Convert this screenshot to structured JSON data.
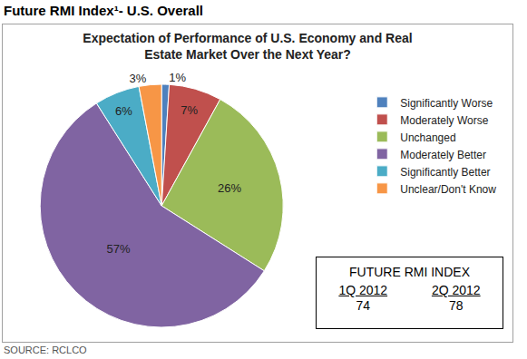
{
  "header": "Future RMI Index¹- U.S. Overall",
  "source": "SOURCE: RCLCO",
  "index_box": {
    "title": "FUTURE RMI INDEX",
    "columns": [
      {
        "label": "1Q 2012",
        "value": 74
      },
      {
        "label": "2Q 2012",
        "value": 78
      }
    ]
  },
  "chart_data": {
    "type": "pie",
    "title": "Expectation of Performance of U.S. Economy and Real Estate Market Over the Next Year?",
    "categories": [
      "Significantly Worse",
      "Moderately Worse",
      "Unchanged",
      "Moderately Better",
      "Significantly Better",
      "Unclear/Don't Know"
    ],
    "values": [
      1,
      7,
      26,
      57,
      6,
      3
    ],
    "value_labels": [
      "1%",
      "7%",
      "26%",
      "57%",
      "6%",
      "3%"
    ],
    "colors": [
      "#4f81bd",
      "#c0504d",
      "#9bbb59",
      "#8064a2",
      "#4bacc6",
      "#f79646"
    ],
    "data_labels": true,
    "legend": "right"
  }
}
